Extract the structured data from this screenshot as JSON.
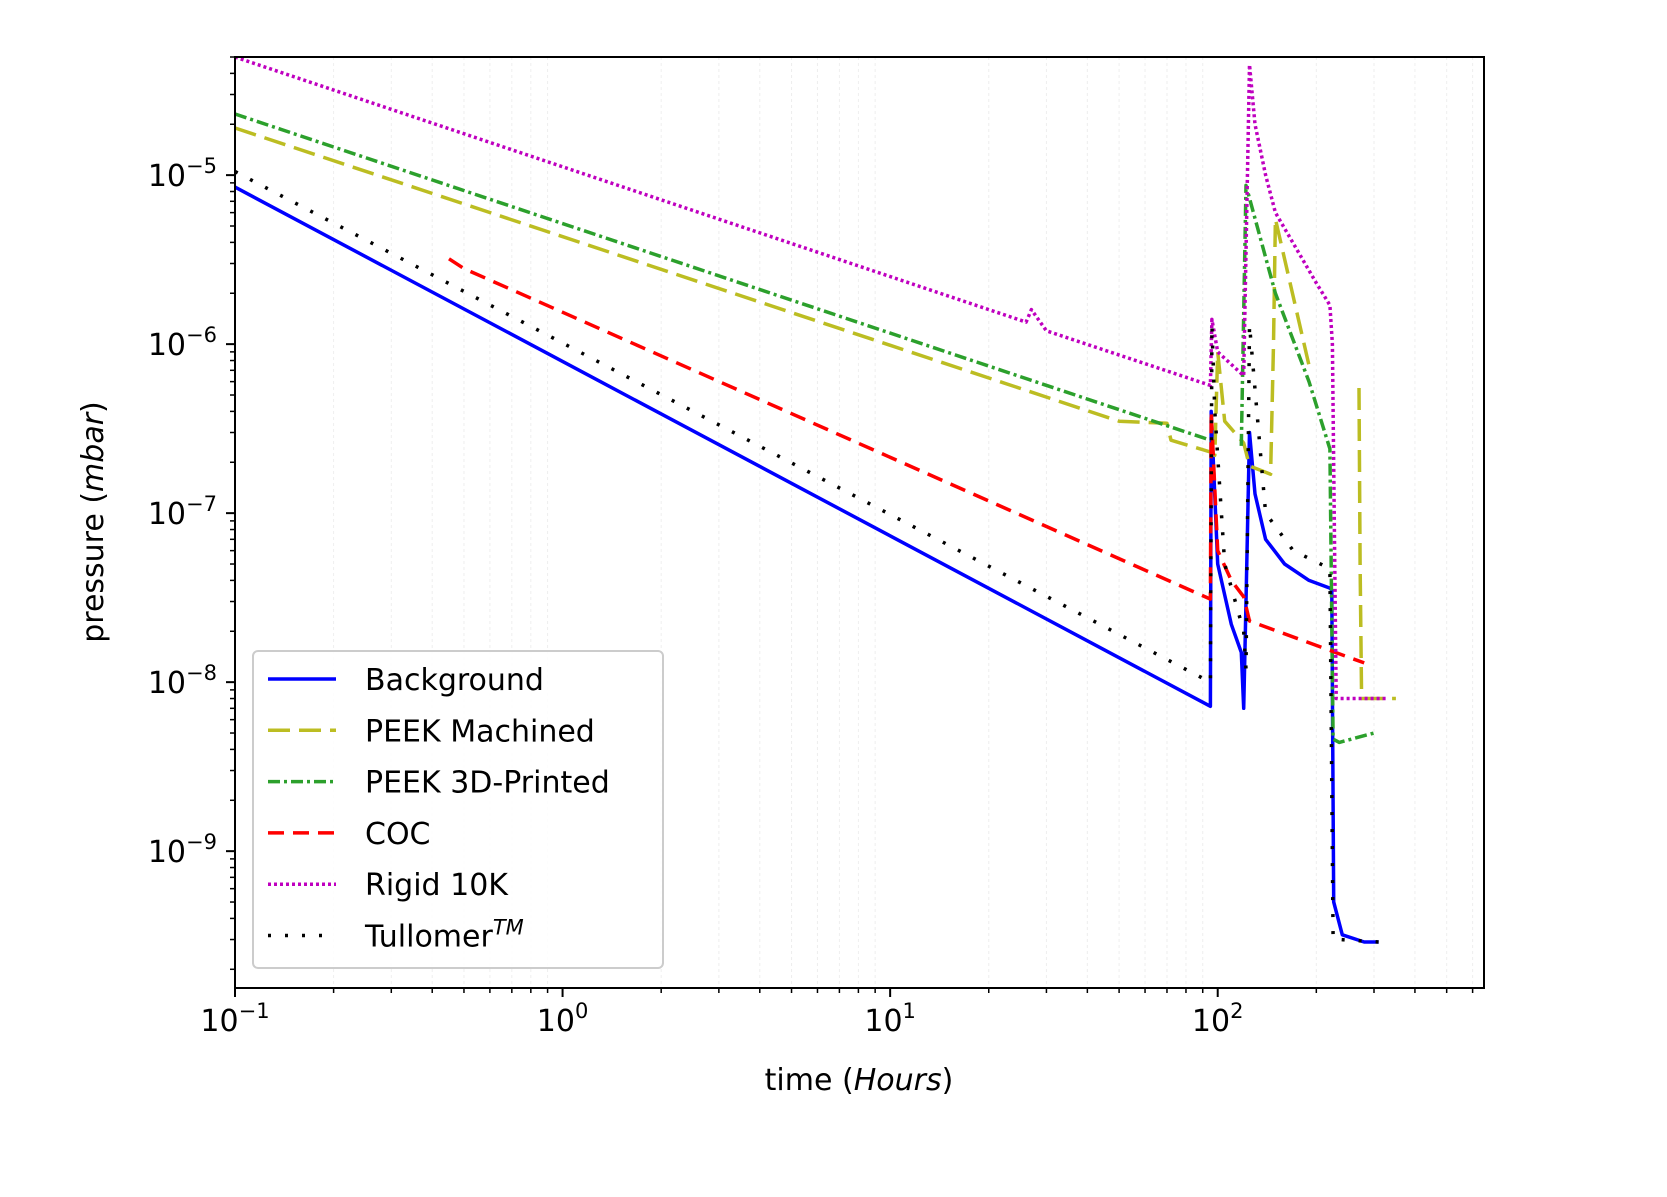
{
  "chart_data": {
    "type": "line",
    "title": "",
    "xlabel": {
      "pre": "time (",
      "italic": "Hours",
      "post": ")"
    },
    "ylabel": {
      "pre": "pressure (",
      "italic": "mbar",
      "post": ")"
    },
    "xscale": "log",
    "yscale": "log",
    "xlim": [
      0.1,
      650
    ],
    "ylim": [
      1.55e-10,
      5e-05
    ],
    "grid": "faint vertical minor gridlines",
    "legend_position": "lower-left",
    "x_ticks": [
      {
        "value": 0.1,
        "base": "10",
        "exp": "−1"
      },
      {
        "value": 1,
        "base": "10",
        "exp": "0"
      },
      {
        "value": 10,
        "base": "10",
        "exp": "1"
      },
      {
        "value": 100,
        "base": "10",
        "exp": "2"
      }
    ],
    "y_ticks": [
      {
        "value": 1e-05,
        "base": "10",
        "exp": "−5"
      },
      {
        "value": 1e-06,
        "base": "10",
        "exp": "−6"
      },
      {
        "value": 1e-07,
        "base": "10",
        "exp": "−7"
      },
      {
        "value": 1e-08,
        "base": "10",
        "exp": "−8"
      },
      {
        "value": 1e-09,
        "base": "10",
        "exp": "−9"
      }
    ],
    "series": [
      {
        "name": "Background",
        "sup": "",
        "color": "#0000ff",
        "style": "solid",
        "x": [
          0.1,
          95,
          95.5,
          100,
          110,
          118,
          120,
          122,
          125,
          130,
          140,
          160,
          190,
          220,
          223,
          226,
          240,
          280,
          310
        ],
        "y": [
          8.5e-06,
          7.2e-09,
          4e-07,
          5e-08,
          2.2e-08,
          1.5e-08,
          7e-09,
          3e-08,
          3e-07,
          1.3e-07,
          7e-08,
          5e-08,
          4e-08,
          3.6e-08,
          3.5e-08,
          5e-10,
          3.2e-10,
          2.9e-10,
          2.9e-10
        ]
      },
      {
        "name": "PEEK Machined",
        "sup": "",
        "color": "#bcbd22",
        "style": "longdash",
        "x": [
          0.1,
          50,
          70,
          72,
          95,
          98,
          100,
          105,
          120,
          125,
          145,
          148,
          150,
          190,
          null,
          270,
          272,
          275,
          300,
          350
        ],
        "y": [
          1.9e-05,
          3.5e-07,
          3.4e-07,
          2.7e-07,
          2.3e-07,
          2.2e-07,
          9e-07,
          3.5e-07,
          2.6e-07,
          1.9e-07,
          1.7e-07,
          1e-06,
          5.5e-06,
          7.5e-07,
          null,
          5.5e-07,
          5e-08,
          8e-09,
          8e-09,
          8e-09
        ]
      },
      {
        "name": "PEEK 3D-Printed",
        "sup": "",
        "color": "#2ca02c",
        "style": "dashdot",
        "x": [
          0.1,
          95,
          null,
          118,
          122,
          150,
          190,
          220,
          225,
          235,
          300
        ],
        "y": [
          2.3e-05,
          2.7e-07,
          null,
          2.5e-07,
          8.7e-06,
          2e-06,
          6e-07,
          2.4e-07,
          4.6e-09,
          4.4e-09,
          5e-09
        ]
      },
      {
        "name": "COC",
        "sup": "",
        "color": "#ff0000",
        "style": "dashed",
        "x": [
          0.45,
          0.5,
          95,
          95.5,
          100,
          110,
          120,
          125,
          280
        ],
        "y": [
          3.2e-06,
          2.8e-06,
          3.1e-08,
          4e-07,
          6e-08,
          4e-08,
          3.2e-08,
          2.3e-08,
          1.3e-08
        ]
      },
      {
        "name": "Rigid 10K",
        "sup": "",
        "color": "#bf00bf",
        "style": "dotted",
        "x": [
          0.1,
          26,
          27,
          30,
          95,
          96,
          100,
          120,
          125,
          130,
          140,
          150,
          200,
          220,
          224,
          230,
          330
        ],
        "y": [
          5e-05,
          1.35e-06,
          1.6e-06,
          1.2e-06,
          5.7e-07,
          1.4e-06,
          9e-07,
          6.5e-07,
          4.5e-05,
          2e-05,
          1e-05,
          6e-06,
          2.3e-06,
          1.7e-06,
          1e-06,
          8e-09,
          8e-09
        ]
      },
      {
        "name": "Tullomer",
        "sup": "TM",
        "color": "#000000",
        "style": "sparsedot",
        "x": [
          0.1,
          95,
          96,
          98,
          105,
          120,
          122,
          125,
          140,
          170,
          220,
          225,
          235,
          310
        ],
        "y": [
          1.05e-05,
          1e-08,
          1.3e-06,
          4e-07,
          5e-08,
          2e-08,
          1.2e-08,
          1.3e-06,
          1e-07,
          6e-08,
          4.7e-08,
          3e-10,
          3e-10,
          2.9e-10
        ]
      }
    ]
  }
}
